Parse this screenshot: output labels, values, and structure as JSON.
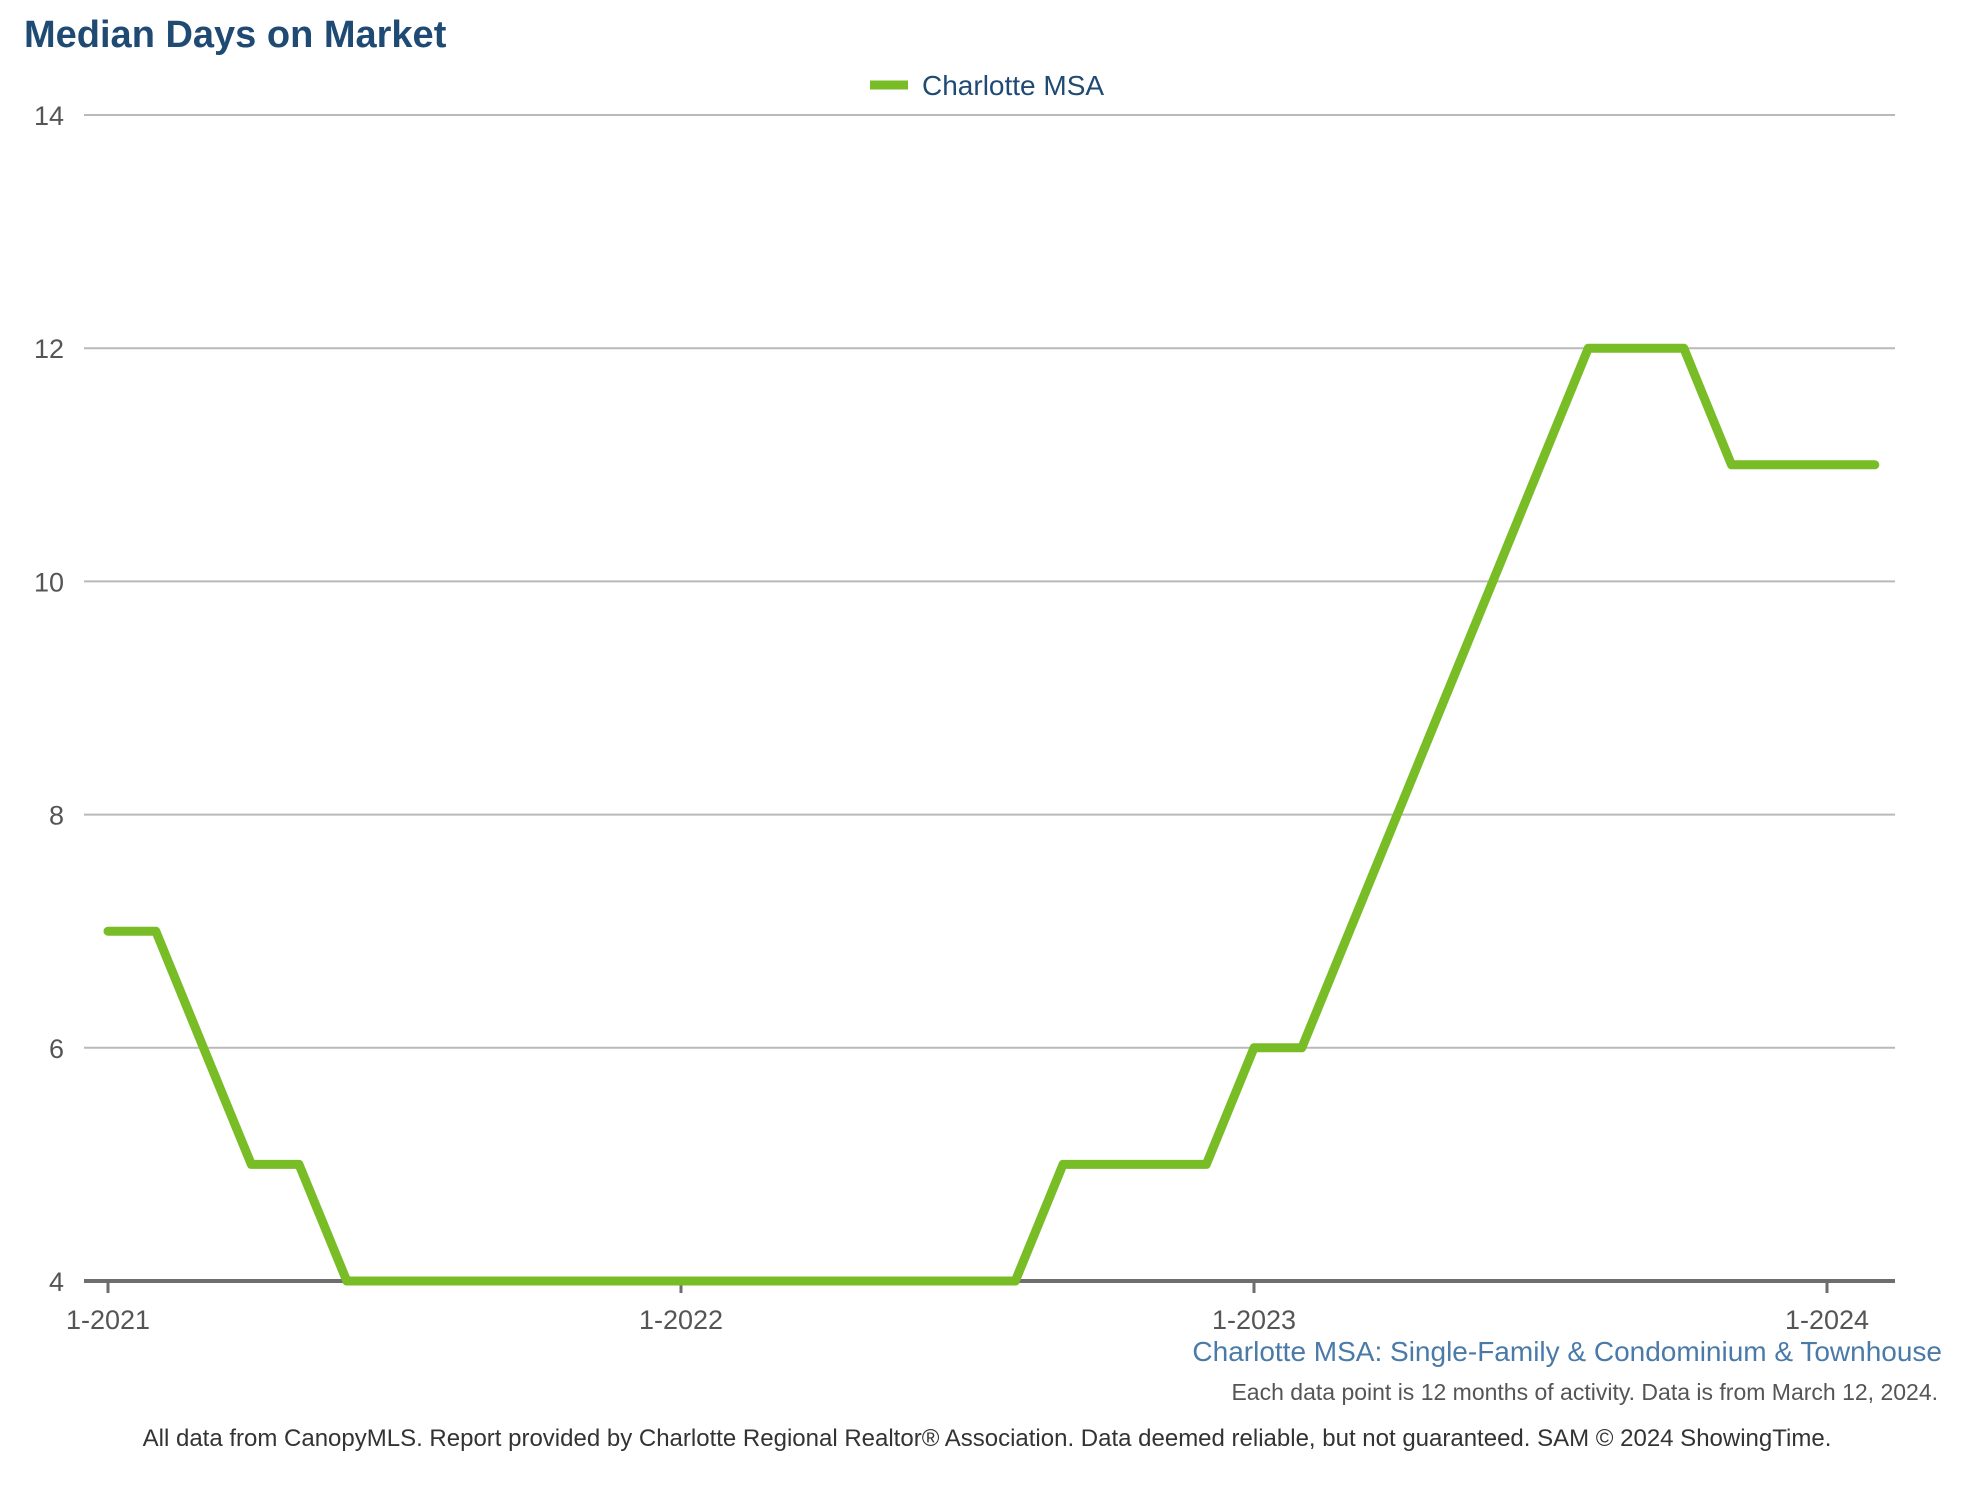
{
  "chart_data": {
    "type": "line",
    "title": "Median Days on Market",
    "subtitle": "Charlotte MSA: Single-Family & Condominium & Townhouse",
    "note": "Each data point is 12 months of activity. Data is from March 12, 2024.",
    "footer": "All data from CanopyMLS. Report provided by Charlotte Regional Realtor® Association. Data deemed reliable, but not guaranteed. SAM © 2024 ShowingTime.",
    "xlabel": "",
    "ylabel": "",
    "ylim": [
      4,
      14
    ],
    "yticks": [
      "4",
      "6",
      "8",
      "10",
      "12",
      "14"
    ],
    "xticks": [
      "1-2021",
      "1-2022",
      "1-2023",
      "1-2024"
    ],
    "grid": true,
    "legend_position": "top-center",
    "series_color": "#78bc26",
    "x": [
      "1-2021",
      "2-2021",
      "3-2021",
      "4-2021",
      "5-2021",
      "6-2021",
      "7-2021",
      "8-2021",
      "9-2021",
      "10-2021",
      "11-2021",
      "12-2021",
      "1-2022",
      "2-2022",
      "3-2022",
      "4-2022",
      "5-2022",
      "6-2022",
      "7-2022",
      "8-2022",
      "9-2022",
      "10-2022",
      "11-2022",
      "12-2022",
      "1-2023",
      "2-2023",
      "3-2023",
      "4-2023",
      "5-2023",
      "6-2023",
      "7-2023",
      "8-2023",
      "9-2023",
      "10-2023",
      "11-2023",
      "12-2023",
      "1-2024",
      "2-2024"
    ],
    "series": [
      {
        "name": "Charlotte MSA",
        "values": [
          7,
          7,
          6,
          5,
          5,
          4,
          4,
          4,
          4,
          4,
          4,
          4,
          4,
          4,
          4,
          4,
          4,
          4,
          4,
          4,
          5,
          5,
          5,
          5,
          6,
          6,
          7,
          8,
          9,
          10,
          11,
          12,
          12,
          12,
          11,
          11,
          11,
          11
        ]
      }
    ]
  }
}
